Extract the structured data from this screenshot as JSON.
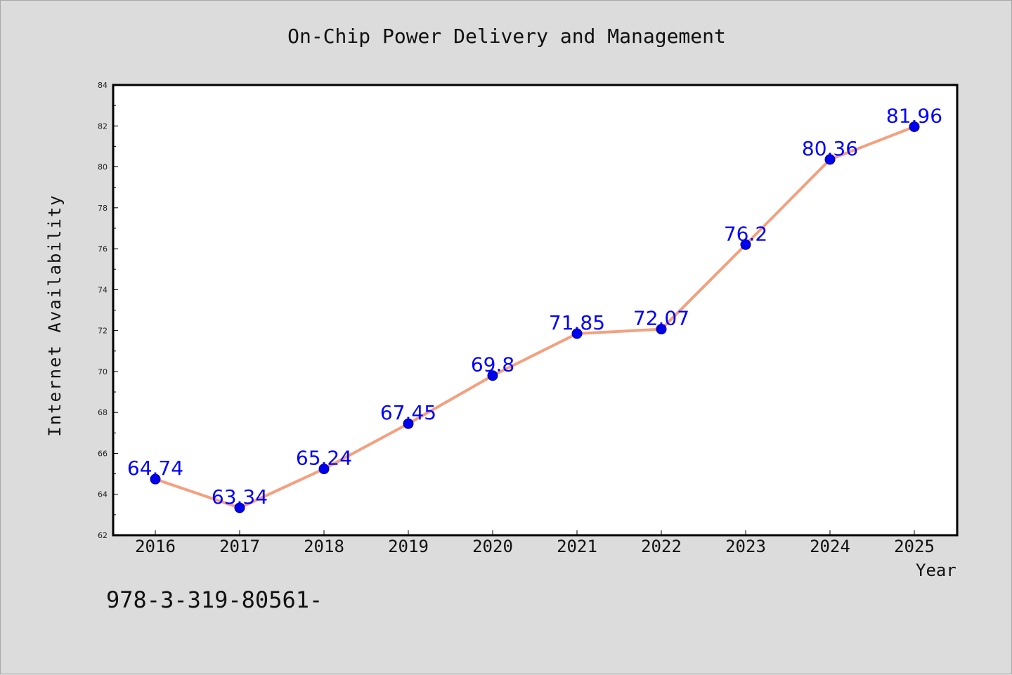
{
  "chart_data": {
    "type": "line",
    "title": "On-Chip Power Delivery and Management",
    "xlabel": "Year",
    "ylabel": "Internet Availability",
    "categories": [
      "2016",
      "2017",
      "2018",
      "2019",
      "2020",
      "2021",
      "2022",
      "2023",
      "2024",
      "2025"
    ],
    "series": [
      {
        "values": [
          64.74,
          63.34,
          65.24,
          67.45,
          69.8,
          71.85,
          72.07,
          76.2,
          80.36,
          81.96
        ],
        "labels": [
          "64.74",
          "63.34",
          "65.24",
          "67.45",
          "69.8",
          "71.85",
          "72.07",
          "76.2",
          "80.36",
          "81.96"
        ],
        "line_color": "#f4a07f",
        "marker_color": "#0000ee",
        "label_color": "#0000ff"
      }
    ],
    "ylim": [
      62,
      84
    ],
    "yticks": [
      62,
      64,
      66,
      68,
      70,
      72,
      74,
      76,
      78,
      80,
      82,
      84
    ],
    "grid": false,
    "legend": "none"
  },
  "footnote": "978-3-319-80561-",
  "colors": {
    "background": "#dcdcdc",
    "plot_background": "#ffffff",
    "axes": "#000000"
  }
}
